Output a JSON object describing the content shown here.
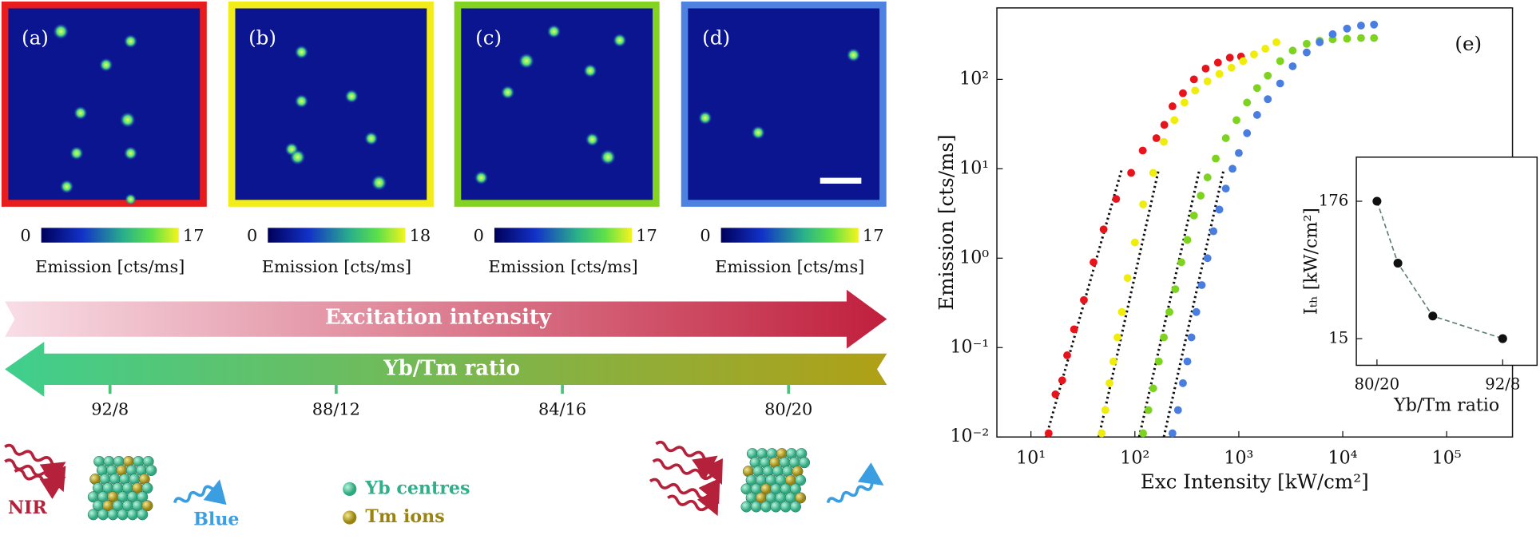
{
  "image_panels": [
    {
      "label": "(a)",
      "colorbar_min": 0,
      "colorbar_max": 17,
      "colorbar_label": "Emission [cts/ms]",
      "border_color": "#e81c1c"
    },
    {
      "label": "(b)",
      "colorbar_min": 0,
      "colorbar_max": 18,
      "colorbar_label": "Emission [cts/ms]",
      "border_color": "#f2ec1a"
    },
    {
      "label": "(c)",
      "colorbar_min": 0,
      "colorbar_max": 17,
      "colorbar_label": "Emission [cts/ms]",
      "border_color": "#84d322"
    },
    {
      "label": "(d)",
      "colorbar_min": 0,
      "colorbar_max": 17,
      "colorbar_label": "Emission [cts/ms]",
      "border_color": "#4d82e0"
    }
  ],
  "excitation_arrow": {
    "label": "Excitation intensity"
  },
  "ratio_arrow": {
    "label": "Yb/Tm ratio",
    "ticks": [
      "92/8",
      "88/12",
      "84/16",
      "80/20"
    ]
  },
  "schematic": {
    "left_input": "NIR",
    "left_output": "Blue",
    "legend": [
      "Yb centres",
      "Tm ions"
    ]
  },
  "chart_data": [
    {
      "type": "scatter",
      "label": "(e)",
      "x_label": "Exc Intensity [kW/cm²]",
      "y_label": "Emission [cts/ms]",
      "log_x": true,
      "log_y": true,
      "xlim": [
        4.7,
        430000
      ],
      "ylim": [
        0.01,
        630
      ],
      "xticks": [
        {
          "value": 10,
          "label": "10¹"
        },
        {
          "value": 100,
          "label": "10²"
        },
        {
          "value": 1000,
          "label": "10³"
        },
        {
          "value": 10000,
          "label": "10⁴"
        },
        {
          "value": 100000,
          "label": "10⁵"
        }
      ],
      "yticks": [
        {
          "value": 0.01,
          "label": "10⁻²"
        },
        {
          "value": 0.1,
          "label": "10⁻¹"
        },
        {
          "value": 1,
          "label": "10⁰"
        },
        {
          "value": 10,
          "label": "10¹"
        },
        {
          "value": 100,
          "label": "10²"
        }
      ],
      "series": [
        {
          "color": "#e8141c",
          "x": [
            14.8,
            17.2,
            20,
            22.3,
            26,
            32.3,
            40,
            50,
            66,
            92,
            119,
            161,
            192,
            230,
            290,
            370,
            480,
            630,
            820,
            1050
          ],
          "values": [
            0.011,
            0.03,
            0.043,
            0.082,
            0.16,
            0.34,
            0.9,
            2.1,
            4.6,
            9,
            16,
            22,
            31,
            50,
            70,
            100,
            132,
            154,
            175,
            180
          ],
          "fit_x": [
            14,
            75
          ],
          "fit_values": [
            0.01,
            10
          ]
        },
        {
          "color": "#f0ec0c",
          "x": [
            48,
            52,
            57,
            62,
            68,
            75,
            85,
            100,
            120,
            150,
            190,
            240,
            300,
            380,
            500,
            650,
            850,
            1100,
            1400,
            1800,
            2300
          ],
          "values": [
            0.011,
            0.02,
            0.04,
            0.07,
            0.13,
            0.25,
            0.6,
            1.5,
            4,
            9,
            20,
            35,
            55,
            75,
            95,
            115,
            135,
            160,
            190,
            220,
            260
          ],
          "fit_x": [
            45,
            170
          ],
          "fit_values": [
            0.01,
            10
          ]
        },
        {
          "color": "#7ed321",
          "x": [
            120,
            135,
            150,
            170,
            190,
            215,
            245,
            280,
            320,
            370,
            430,
            500,
            600,
            750,
            950,
            1200,
            1500,
            1900,
            2500,
            3300,
            4500,
            6000,
            8000,
            11000,
            15000,
            20000
          ],
          "values": [
            0.011,
            0.02,
            0.035,
            0.07,
            0.13,
            0.25,
            0.45,
            0.9,
            1.6,
            3,
            5,
            8,
            13,
            22,
            35,
            55,
            80,
            110,
            160,
            210,
            250,
            270,
            280,
            285,
            290,
            290
          ],
          "fit_x": [
            110,
            420
          ],
          "fit_values": [
            0.01,
            10
          ]
        },
        {
          "color": "#4a7de0",
          "x": [
            230,
            260,
            290,
            320,
            350,
            390,
            440,
            500,
            570,
            650,
            750,
            870,
            1000,
            1200,
            1500,
            1900,
            2500,
            3300,
            4500,
            6000,
            8000,
            11000,
            15000,
            20000
          ],
          "values": [
            0.011,
            0.02,
            0.04,
            0.07,
            0.13,
            0.25,
            0.5,
            1,
            2,
            3.5,
            6,
            10,
            15,
            25,
            40,
            60,
            90,
            140,
            200,
            260,
            320,
            370,
            400,
            410
          ],
          "fit_x": [
            190,
            720
          ],
          "fit_values": [
            0.01,
            10
          ]
        }
      ]
    },
    {
      "type": "scatter",
      "x_label": "Yb/Tm ratio",
      "y_label": "Iₜₕ [kW/cm²]",
      "log_x": false,
      "log_y": true,
      "xlim": [
        2.77,
        13.55
      ],
      "ylim": [
        9.3,
        388
      ],
      "xticks": [
        {
          "value": 4,
          "label": "80/20"
        },
        {
          "value": 11.5,
          "label": "92/8"
        }
      ],
      "yticks": [
        15,
        176
      ],
      "x": [
        4,
        5.25,
        7.33,
        11.5
      ],
      "values": [
        176,
        58,
        22.5,
        15
      ],
      "color": "#111111",
      "fit_line": "dashed"
    }
  ]
}
